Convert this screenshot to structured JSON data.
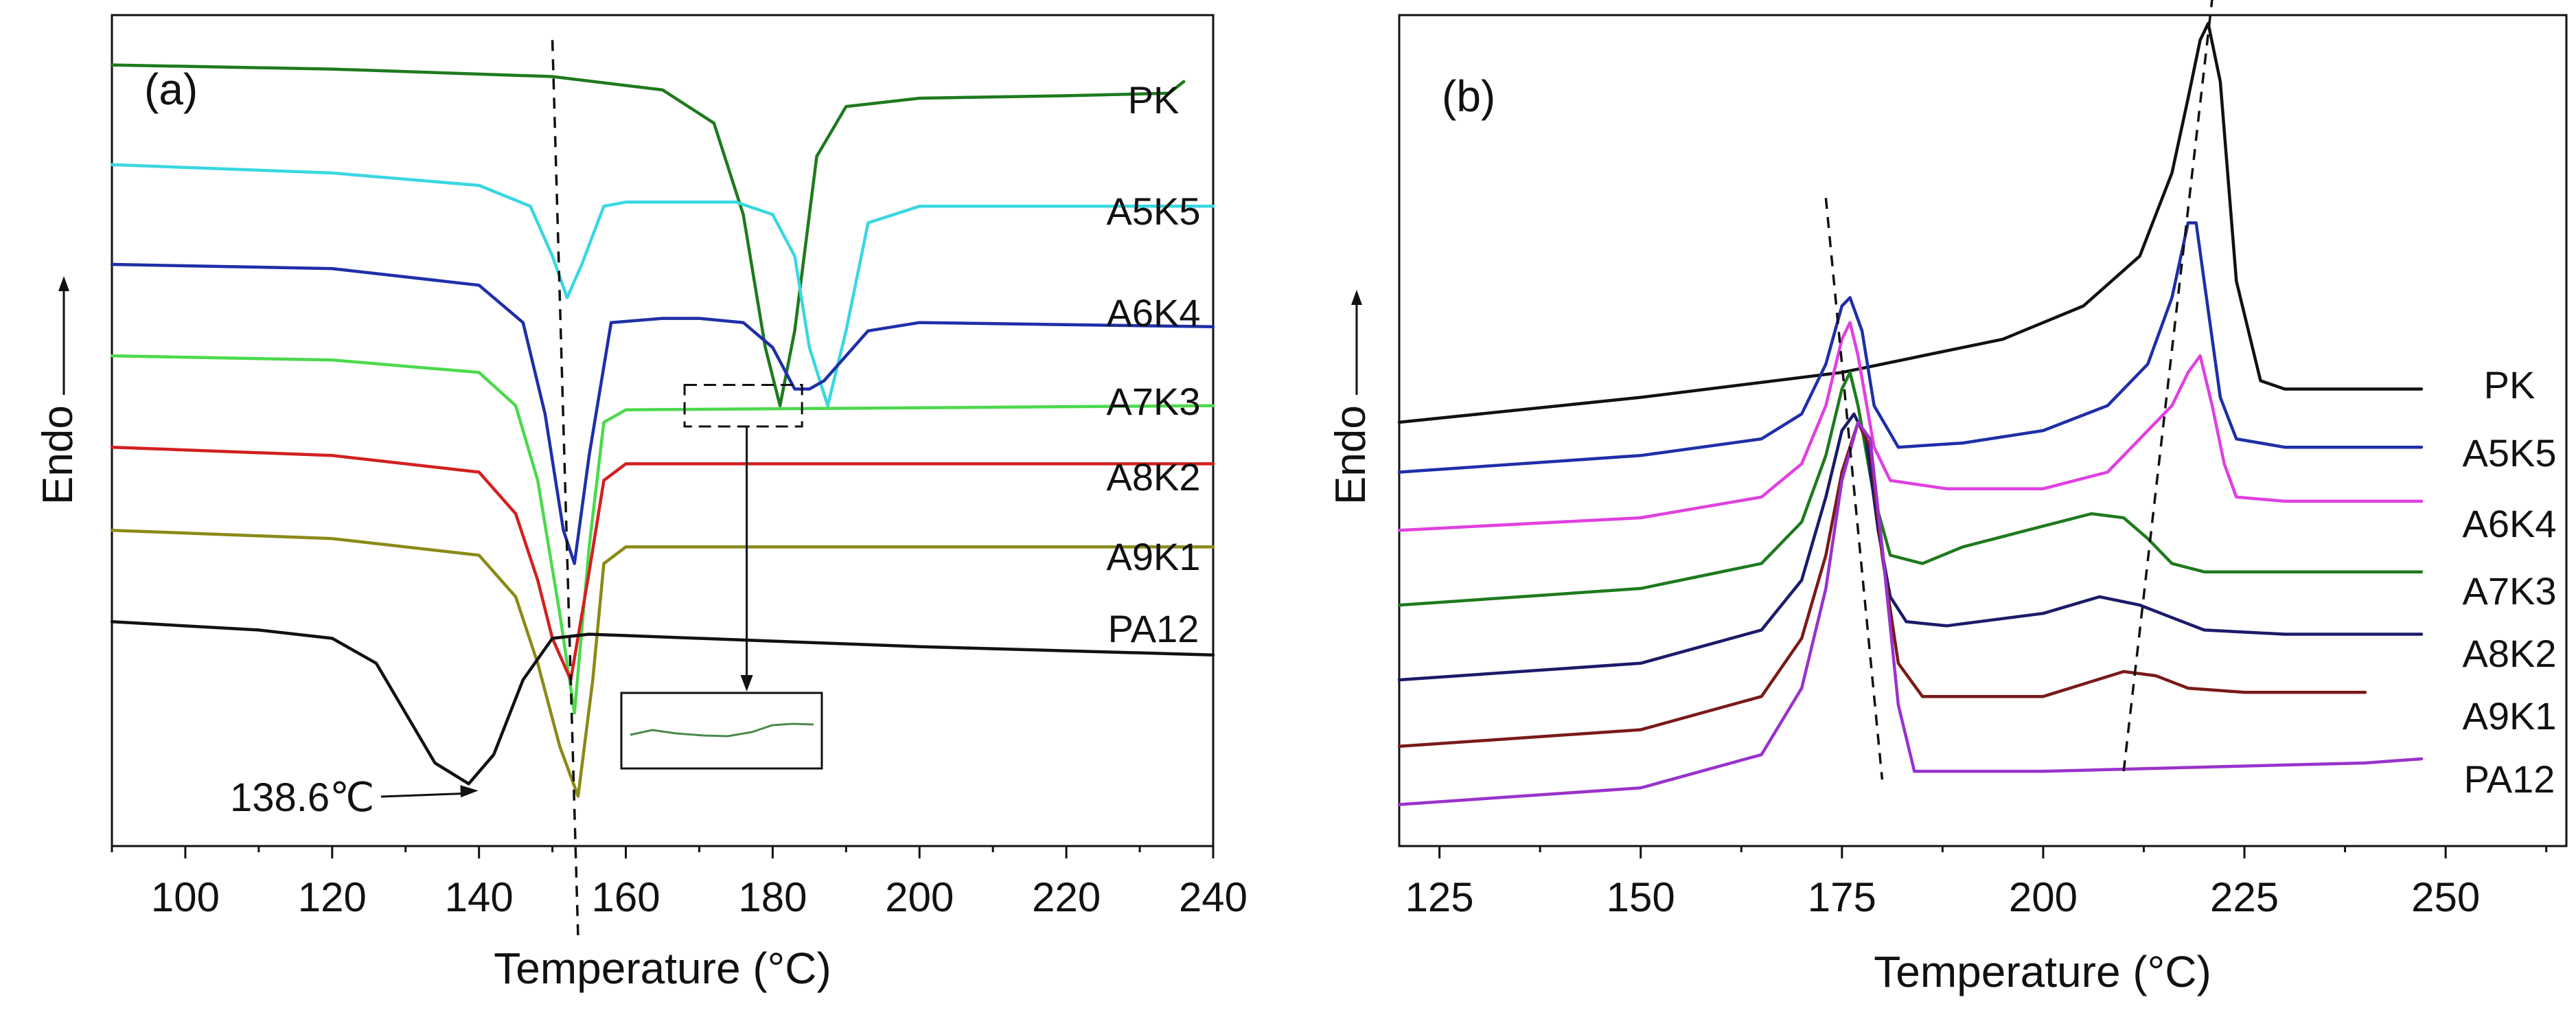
{
  "chart_data": [
    {
      "type": "line",
      "panel": "(a)",
      "xlabel": "Temperature (°C)",
      "ylabel": "Endo",
      "xlim": [
        90,
        240
      ],
      "xticks": [
        100,
        120,
        140,
        160,
        180,
        200,
        220,
        240
      ],
      "ylim": [
        0,
        100
      ],
      "series_labels": [
        "PK",
        "A5K5",
        "A6K4",
        "A7K3",
        "A8K2",
        "A9K1",
        "PA12"
      ],
      "series": [
        {
          "name": "PK",
          "color": "#1e7a1e",
          "x": [
            90,
            120,
            150,
            165,
            172,
            176,
            179,
            181,
            183,
            186,
            190,
            200,
            220,
            234,
            236
          ],
          "y": [
            94,
            93.5,
            92.6,
            91,
            87,
            76,
            60,
            53,
            62,
            83,
            89,
            90,
            90.3,
            90.6,
            92
          ]
        },
        {
          "name": "A5K5",
          "color": "#3ad7e0",
          "x": [
            90,
            120,
            140,
            147,
            150,
            152,
            154,
            157,
            160,
            175,
            180,
            183,
            185,
            187.5,
            190,
            193,
            200,
            240
          ],
          "y": [
            82,
            81,
            79.5,
            77,
            71,
            66,
            70,
            77,
            77.5,
            77.5,
            76,
            71,
            60,
            53,
            62,
            75,
            77,
            77
          ]
        },
        {
          "name": "A6K4",
          "color": "#1f2fa8",
          "x": [
            90,
            120,
            140,
            146,
            149,
            151.5,
            153,
            155,
            158,
            165,
            170,
            176,
            180,
            183,
            185,
            187,
            190,
            193,
            200,
            240
          ],
          "y": [
            70,
            69.5,
            67.5,
            63,
            52,
            38,
            34,
            47,
            63,
            63.5,
            63.5,
            63,
            60,
            55,
            55,
            56,
            59,
            62,
            63,
            62.5
          ]
        },
        {
          "name": "A7K3",
          "color": "#4cd94c",
          "x": [
            90,
            120,
            140,
            145,
            148,
            151,
            153,
            155,
            157,
            160,
            240
          ],
          "y": [
            59,
            58.5,
            57,
            53,
            44,
            28,
            16,
            36,
            51,
            52.5,
            53
          ]
        },
        {
          "name": "A8K2",
          "color": "#d22020",
          "x": [
            90,
            120,
            140,
            145,
            148,
            150,
            152.5,
            155,
            157,
            160,
            240
          ],
          "y": [
            48,
            47,
            45,
            40,
            32,
            25,
            20,
            33,
            44,
            46,
            46
          ]
        },
        {
          "name": "A9K1",
          "color": "#8a8a18",
          "x": [
            90,
            120,
            140,
            145,
            148,
            151,
            153.5,
            155.5,
            157,
            160,
            240
          ],
          "y": [
            38,
            37,
            35,
            30,
            22,
            12,
            6,
            20,
            34,
            36,
            36
          ]
        },
        {
          "name": "PA12",
          "color": "#111111",
          "x": [
            90,
            110,
            120,
            126,
            130,
            134,
            138.6,
            142,
            146,
            150,
            155,
            170,
            200,
            240
          ],
          "y": [
            27,
            26,
            25,
            22,
            16,
            10,
            7.5,
            11,
            20,
            25,
            25.5,
            25,
            24,
            23
          ]
        }
      ],
      "reference_lines": [
        {
          "style": "dashed",
          "from": [
            150,
            97
          ],
          "to": [
            153.5,
            -11
          ]
        }
      ],
      "annotations": {
        "peak_label": "138.6℃",
        "peak_point": [
          138.6,
          7.5
        ],
        "zoom_box": {
          "x": [
            168,
            184
          ],
          "y": [
            50.5,
            55.5
          ]
        }
      }
    },
    {
      "type": "line",
      "panel": "(b)",
      "xlabel": "Temperature (°C)",
      "ylabel": "Endo",
      "xlim": [
        120,
        265
      ],
      "xticks": [
        125,
        150,
        175,
        200,
        225,
        250
      ],
      "ylim": [
        0,
        100
      ],
      "series_labels": [
        "PK",
        "A5K5",
        "A6K4",
        "A7K3",
        "A8K2",
        "A9K1",
        "PA12"
      ],
      "series": [
        {
          "name": "PK",
          "color": "#111111",
          "x": [
            120,
            150,
            175,
            195,
            205,
            212,
            216,
            218,
            219.5,
            220.5,
            222,
            224,
            227,
            230,
            240,
            247
          ],
          "y": [
            51,
            54,
            57,
            61,
            65,
            71,
            81,
            90,
            97,
            99,
            92,
            68,
            56,
            55,
            55,
            55
          ]
        },
        {
          "name": "A5K5",
          "color": "#1f2fa8",
          "x": [
            120,
            150,
            165,
            170,
            173,
            175,
            176,
            177.5,
            179,
            182,
            190,
            200,
            208,
            213,
            216,
            218,
            219,
            220,
            222,
            224,
            230,
            240,
            247
          ],
          "y": [
            45,
            47,
            49,
            52,
            58,
            65,
            66,
            62,
            53,
            48,
            48.5,
            50,
            53,
            58,
            66,
            75,
            75,
            68,
            54,
            49,
            48,
            48,
            48
          ]
        },
        {
          "name": "A6K4",
          "color": "#e040e0",
          "x": [
            120,
            150,
            165,
            170,
            173,
            175,
            176,
            177,
            179,
            181,
            188,
            200,
            208,
            213,
            216,
            218,
            219.5,
            221,
            222.5,
            224,
            230,
            240,
            247
          ],
          "y": [
            38,
            39.5,
            42,
            46,
            53,
            61,
            63,
            59,
            48,
            44,
            43,
            43,
            45,
            50,
            53,
            57,
            59,
            53,
            46,
            42,
            41.5,
            41.5,
            41.5
          ]
        },
        {
          "name": "A7K3",
          "color": "#1e7a1e",
          "x": [
            120,
            150,
            165,
            170,
            173,
            175,
            176,
            177,
            179,
            181,
            185,
            190,
            200,
            206,
            210,
            213,
            216,
            220,
            230,
            247
          ],
          "y": [
            29,
            31,
            34,
            39,
            47,
            55,
            57,
            53,
            42,
            35,
            34,
            36,
            38.5,
            40,
            39.5,
            37,
            34,
            33,
            33,
            33
          ]
        },
        {
          "name": "A8K2",
          "color": "#1b1b6a",
          "x": [
            120,
            150,
            165,
            170,
            173,
            175,
            176.5,
            178,
            179.5,
            181,
            183,
            188,
            200,
            207,
            212,
            216,
            220,
            230,
            247
          ],
          "y": [
            20,
            22,
            26,
            32,
            42,
            50,
            52,
            49,
            38,
            30,
            27,
            26.5,
            28,
            30,
            29,
            27.5,
            26,
            25.5,
            25.5
          ]
        },
        {
          "name": "A9K1",
          "color": "#7a1a1a",
          "x": [
            120,
            150,
            165,
            170,
            173,
            175,
            177,
            178.5,
            180,
            182,
            185,
            190,
            200,
            210,
            214,
            218,
            225,
            240
          ],
          "y": [
            12,
            14,
            18,
            25,
            35,
            45,
            51,
            48,
            35,
            22,
            18,
            18,
            18,
            21,
            20.5,
            19,
            18.5,
            18.5
          ]
        },
        {
          "name": "PA12",
          "color": "#9932cc",
          "x": [
            120,
            150,
            165,
            170,
            173,
            175,
            177,
            178.5,
            180,
            182,
            184,
            190,
            200,
            220,
            240,
            247
          ],
          "y": [
            5,
            7,
            11,
            19,
            31,
            44,
            51,
            49,
            36,
            17,
            9,
            9,
            9,
            9.5,
            10,
            10.5
          ]
        }
      ],
      "reference_lines": [
        {
          "style": "dashed",
          "from": [
            173,
            78
          ],
          "to": [
            180,
            8
          ]
        },
        {
          "style": "dashed",
          "from": [
            210,
            9
          ],
          "to": [
            221,
            102
          ]
        }
      ]
    }
  ],
  "panels": {
    "a": {
      "label": "(a)"
    },
    "b": {
      "label": "(b)"
    }
  }
}
